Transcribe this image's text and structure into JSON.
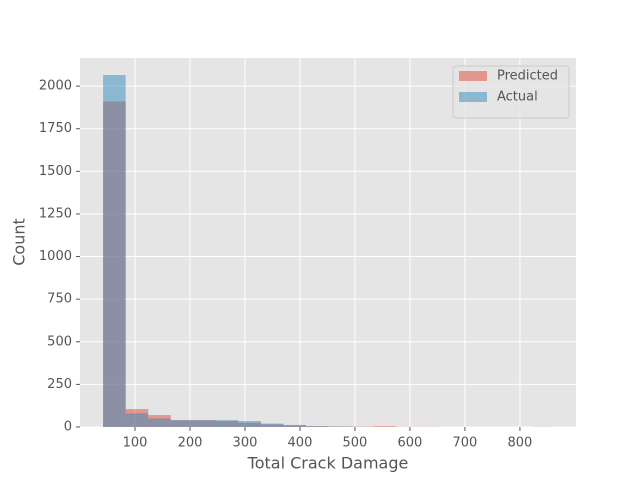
{
  "chart_data": {
    "type": "histogram",
    "xlabel": "Total Crack Damage",
    "ylabel": "Count",
    "bins": [
      42,
      83,
      124,
      165,
      206,
      247,
      288,
      329,
      370,
      411,
      452,
      493,
      534,
      575,
      616,
      657,
      698,
      739,
      780,
      821,
      862
    ],
    "series": [
      {
        "name": "Predicted",
        "color": "#E24A33",
        "values": [
          1910,
          105,
          70,
          40,
          40,
          35,
          25,
          15,
          10,
          5,
          3,
          2,
          5,
          1,
          1,
          0,
          0,
          0,
          0,
          1
        ]
      },
      {
        "name": "Actual",
        "color": "#348ABD",
        "values": [
          2065,
          80,
          50,
          40,
          40,
          40,
          35,
          20,
          12,
          5,
          3,
          1,
          0,
          0,
          0,
          0,
          0,
          0,
          0,
          0
        ]
      }
    ],
    "xlim": [
      0,
      902
    ],
    "ylim": [
      0,
      2165
    ],
    "xticks": [
      100,
      200,
      300,
      400,
      500,
      600,
      700,
      800
    ],
    "yticks": [
      0,
      250,
      500,
      750,
      1000,
      1250,
      1500,
      1750,
      2000
    ],
    "grid": true,
    "legend": "upper right",
    "alpha": 0.5
  }
}
